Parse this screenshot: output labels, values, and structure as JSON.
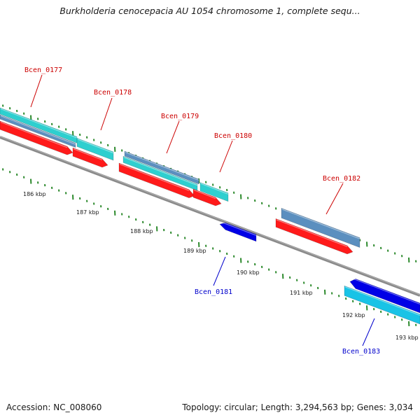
{
  "header": {
    "title": "Burkholderia cenocepacia AU 1054 chromosome 1, complete sequ..."
  },
  "footer": {
    "accession": "Accession: NC_008060",
    "summary": "Topology: circular; Length: 3,294,563 bp; Genes: 3,034"
  },
  "colors": {
    "plus_label": "#cc0000",
    "minus_label": "#0000cc",
    "backbone": "#8a8a8a",
    "cds_plus": "#ff1a1a",
    "gene_plus": "#2ecfcf",
    "gene_plus_alt": "#5b8fbf",
    "cds_minus": "#0000e6",
    "gene_minus": "#19c3e6",
    "tick": "#2d8a2d"
  },
  "scale": {
    "unit": "kbp",
    "ticks": [
      "186 kbp",
      "187 kbp",
      "188 kbp",
      "189 kbp",
      "190 kbp",
      "191 kbp",
      "192 kbp",
      "193 kbp"
    ]
  },
  "genes": [
    {
      "label": "Bcen_0177",
      "strand": "plus"
    },
    {
      "label": "Bcen_0178",
      "strand": "plus"
    },
    {
      "label": "Bcen_0179",
      "strand": "plus"
    },
    {
      "label": "Bcen_0180",
      "strand": "plus"
    },
    {
      "label": "Bcen_0181",
      "strand": "minus"
    },
    {
      "label": "Bcen_0182",
      "strand": "plus"
    },
    {
      "label": "Bcen_0183",
      "strand": "minus"
    }
  ]
}
